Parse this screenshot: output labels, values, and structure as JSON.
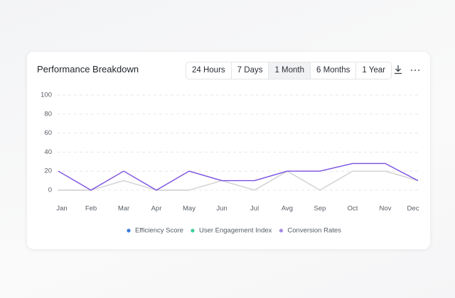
{
  "ui": {
    "periods": [
      "24 Hours",
      "7 Days",
      "1 Month",
      "6 Months",
      "1 Year"
    ],
    "active_period": 2
  },
  "chart_data": {
    "type": "line",
    "title": "Performance Breakdown",
    "categories": [
      "Jan",
      "Feb",
      "Mar",
      "Apr",
      "May",
      "Jun",
      "Jul",
      "Avg",
      "Sep",
      "Oct",
      "Nov",
      "Dec"
    ],
    "series": [
      {
        "name": "Efficiency Score",
        "color": "#3b7ddd",
        "line_color": "#d4d4d6",
        "values": [
          0,
          0,
          10,
          0,
          0,
          10,
          0,
          20,
          0,
          20,
          20,
          10
        ]
      },
      {
        "name": "User Engagement Index",
        "color": "#3fcf9a",
        "line_color": "#d4d4d6",
        "values": [
          0,
          0,
          10,
          0,
          0,
          10,
          0,
          20,
          0,
          20,
          20,
          10
        ]
      },
      {
        "name": "Conversion Rates",
        "color": "#a98be6",
        "line_color": "#7a4fe0",
        "values": [
          20,
          0,
          20,
          0,
          20,
          10,
          10,
          20,
          20,
          28,
          28,
          10
        ]
      }
    ],
    "ylim": [
      0,
      100
    ],
    "yticks": [
      0,
      20,
      40,
      60,
      80,
      100
    ],
    "grid": true
  }
}
